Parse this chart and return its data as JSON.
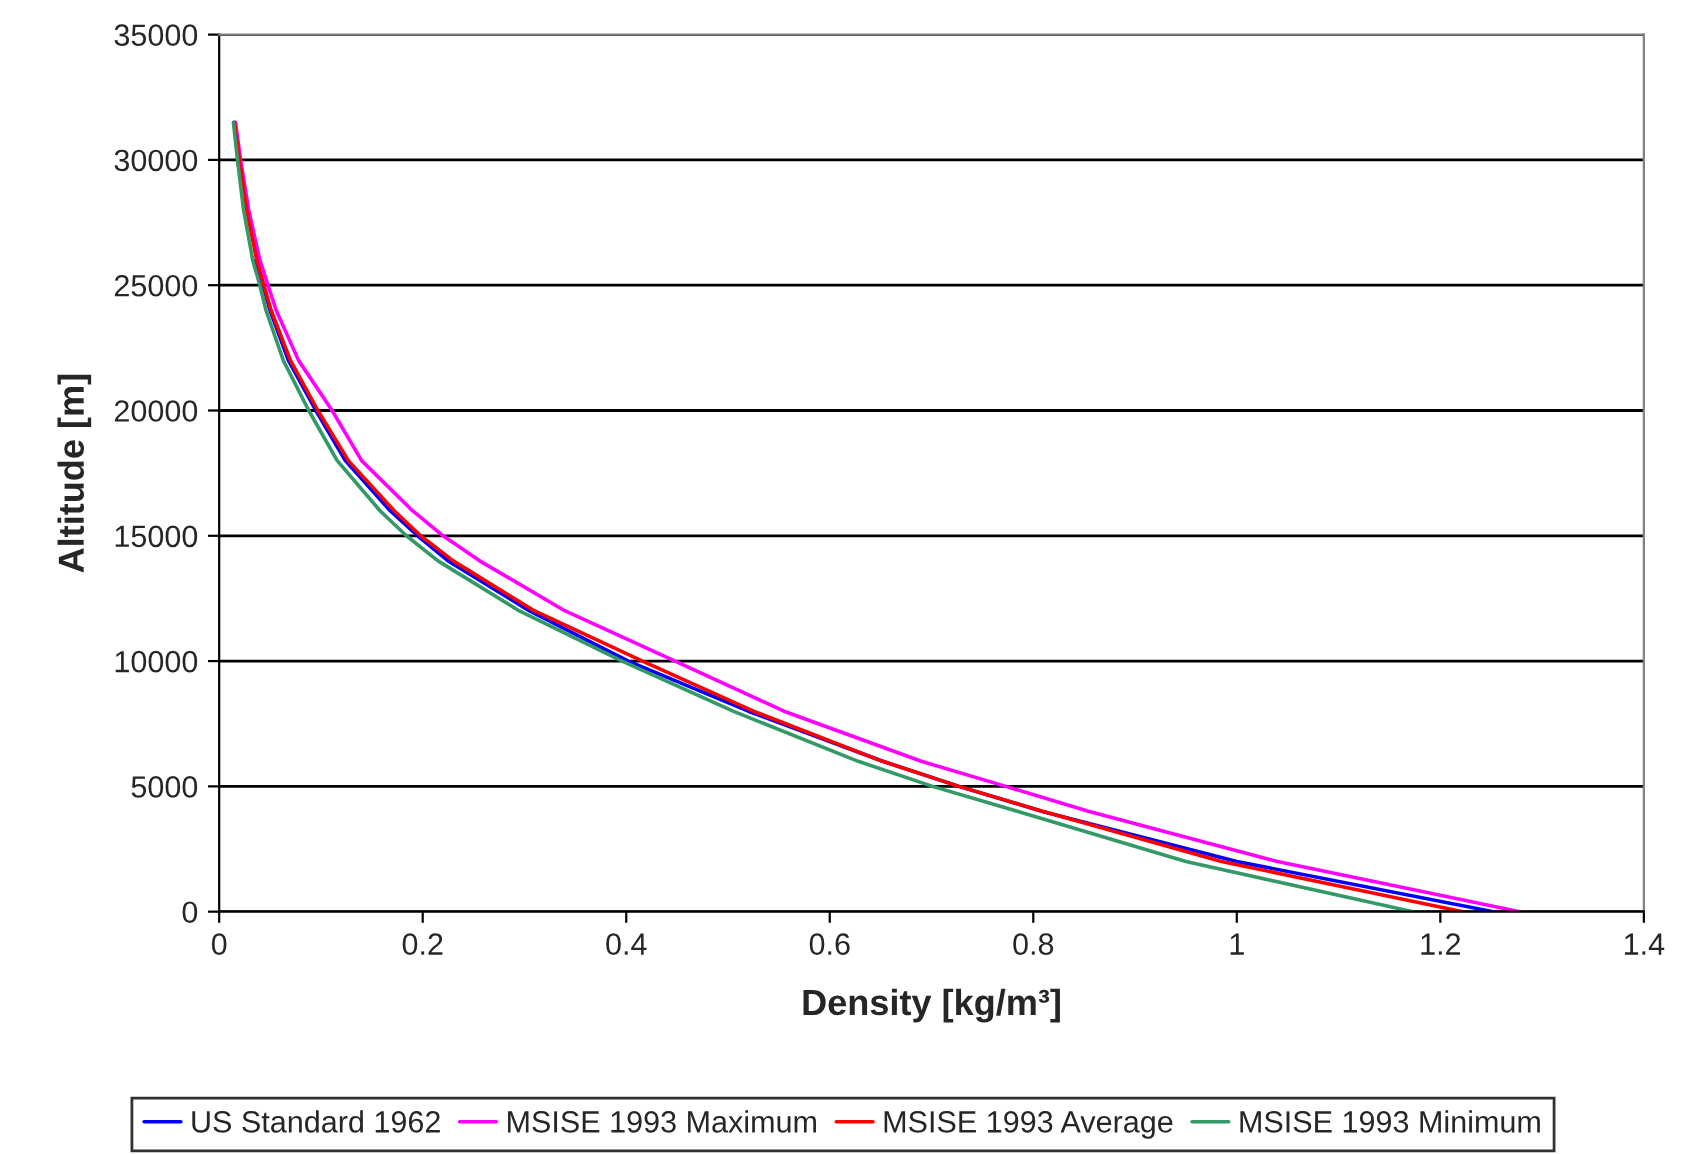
{
  "chart_data": {
    "type": "line",
    "xlabel": "Density [kg/m³]",
    "ylabel": "Altitude [m]",
    "xlim": [
      0,
      1.4
    ],
    "xticks": [
      0,
      0.2,
      0.4,
      0.6,
      0.8,
      1,
      1.2,
      1.4
    ],
    "ylim": [
      0,
      35000
    ],
    "yticks": [
      0,
      5000,
      10000,
      15000,
      20000,
      25000,
      30000,
      35000
    ],
    "grid": "y",
    "legend": "bottom",
    "marker": "none",
    "line_style": "solid",
    "series": [
      {
        "name": "US Standard 1962",
        "color": "#0000ff",
        "x": [
          1.252,
          1.0,
          0.809,
          0.727,
          0.652,
          0.52,
          0.402,
          0.305,
          0.225,
          0.195,
          0.168,
          0.124,
          0.095,
          0.068,
          0.05,
          0.043,
          0.036
        ],
        "values": [
          0,
          2000,
          4000,
          5000,
          6000,
          8000,
          10000,
          12000,
          14000,
          15000,
          16000,
          18000,
          20000,
          22000,
          24000,
          25000,
          26000
        ]
      },
      {
        "name": "MSISE 1993 Maximum",
        "color": "#ff00ff",
        "x": [
          1.278,
          1.04,
          0.855,
          0.773,
          0.69,
          0.555,
          0.448,
          0.34,
          0.256,
          0.22,
          0.19,
          0.14,
          0.111,
          0.078,
          0.056,
          0.048,
          0.04,
          0.029,
          0.021,
          0.016
        ],
        "values": [
          0,
          2000,
          4000,
          5000,
          6000,
          8000,
          10000,
          12000,
          14000,
          15000,
          16000,
          18000,
          20000,
          22000,
          24000,
          25000,
          26000,
          28000,
          30000,
          31500
        ]
      },
      {
        "name": "MSISE 1993 Average",
        "color": "#ff0000",
        "x": [
          1.222,
          0.985,
          0.81,
          0.727,
          0.652,
          0.525,
          0.416,
          0.31,
          0.23,
          0.198,
          0.172,
          0.127,
          0.097,
          0.07,
          0.051,
          0.044,
          0.037,
          0.027,
          0.02,
          0.015
        ],
        "values": [
          0,
          2000,
          4000,
          5000,
          6000,
          8000,
          10000,
          12000,
          14000,
          15000,
          16000,
          18000,
          20000,
          22000,
          24000,
          25000,
          26000,
          28000,
          30000,
          31500
        ]
      },
      {
        "name": "MSISE 1993 Minimum",
        "color": "#339966",
        "x": [
          1.173,
          0.95,
          0.785,
          0.701,
          0.628,
          0.505,
          0.396,
          0.295,
          0.215,
          0.184,
          0.158,
          0.116,
          0.088,
          0.063,
          0.046,
          0.04,
          0.033,
          0.024,
          0.018,
          0.014
        ],
        "values": [
          0,
          2000,
          4000,
          5000,
          6000,
          8000,
          10000,
          12000,
          14000,
          15000,
          16000,
          18000,
          20000,
          22000,
          24000,
          25000,
          26000,
          28000,
          30000,
          31500
        ]
      }
    ]
  }
}
